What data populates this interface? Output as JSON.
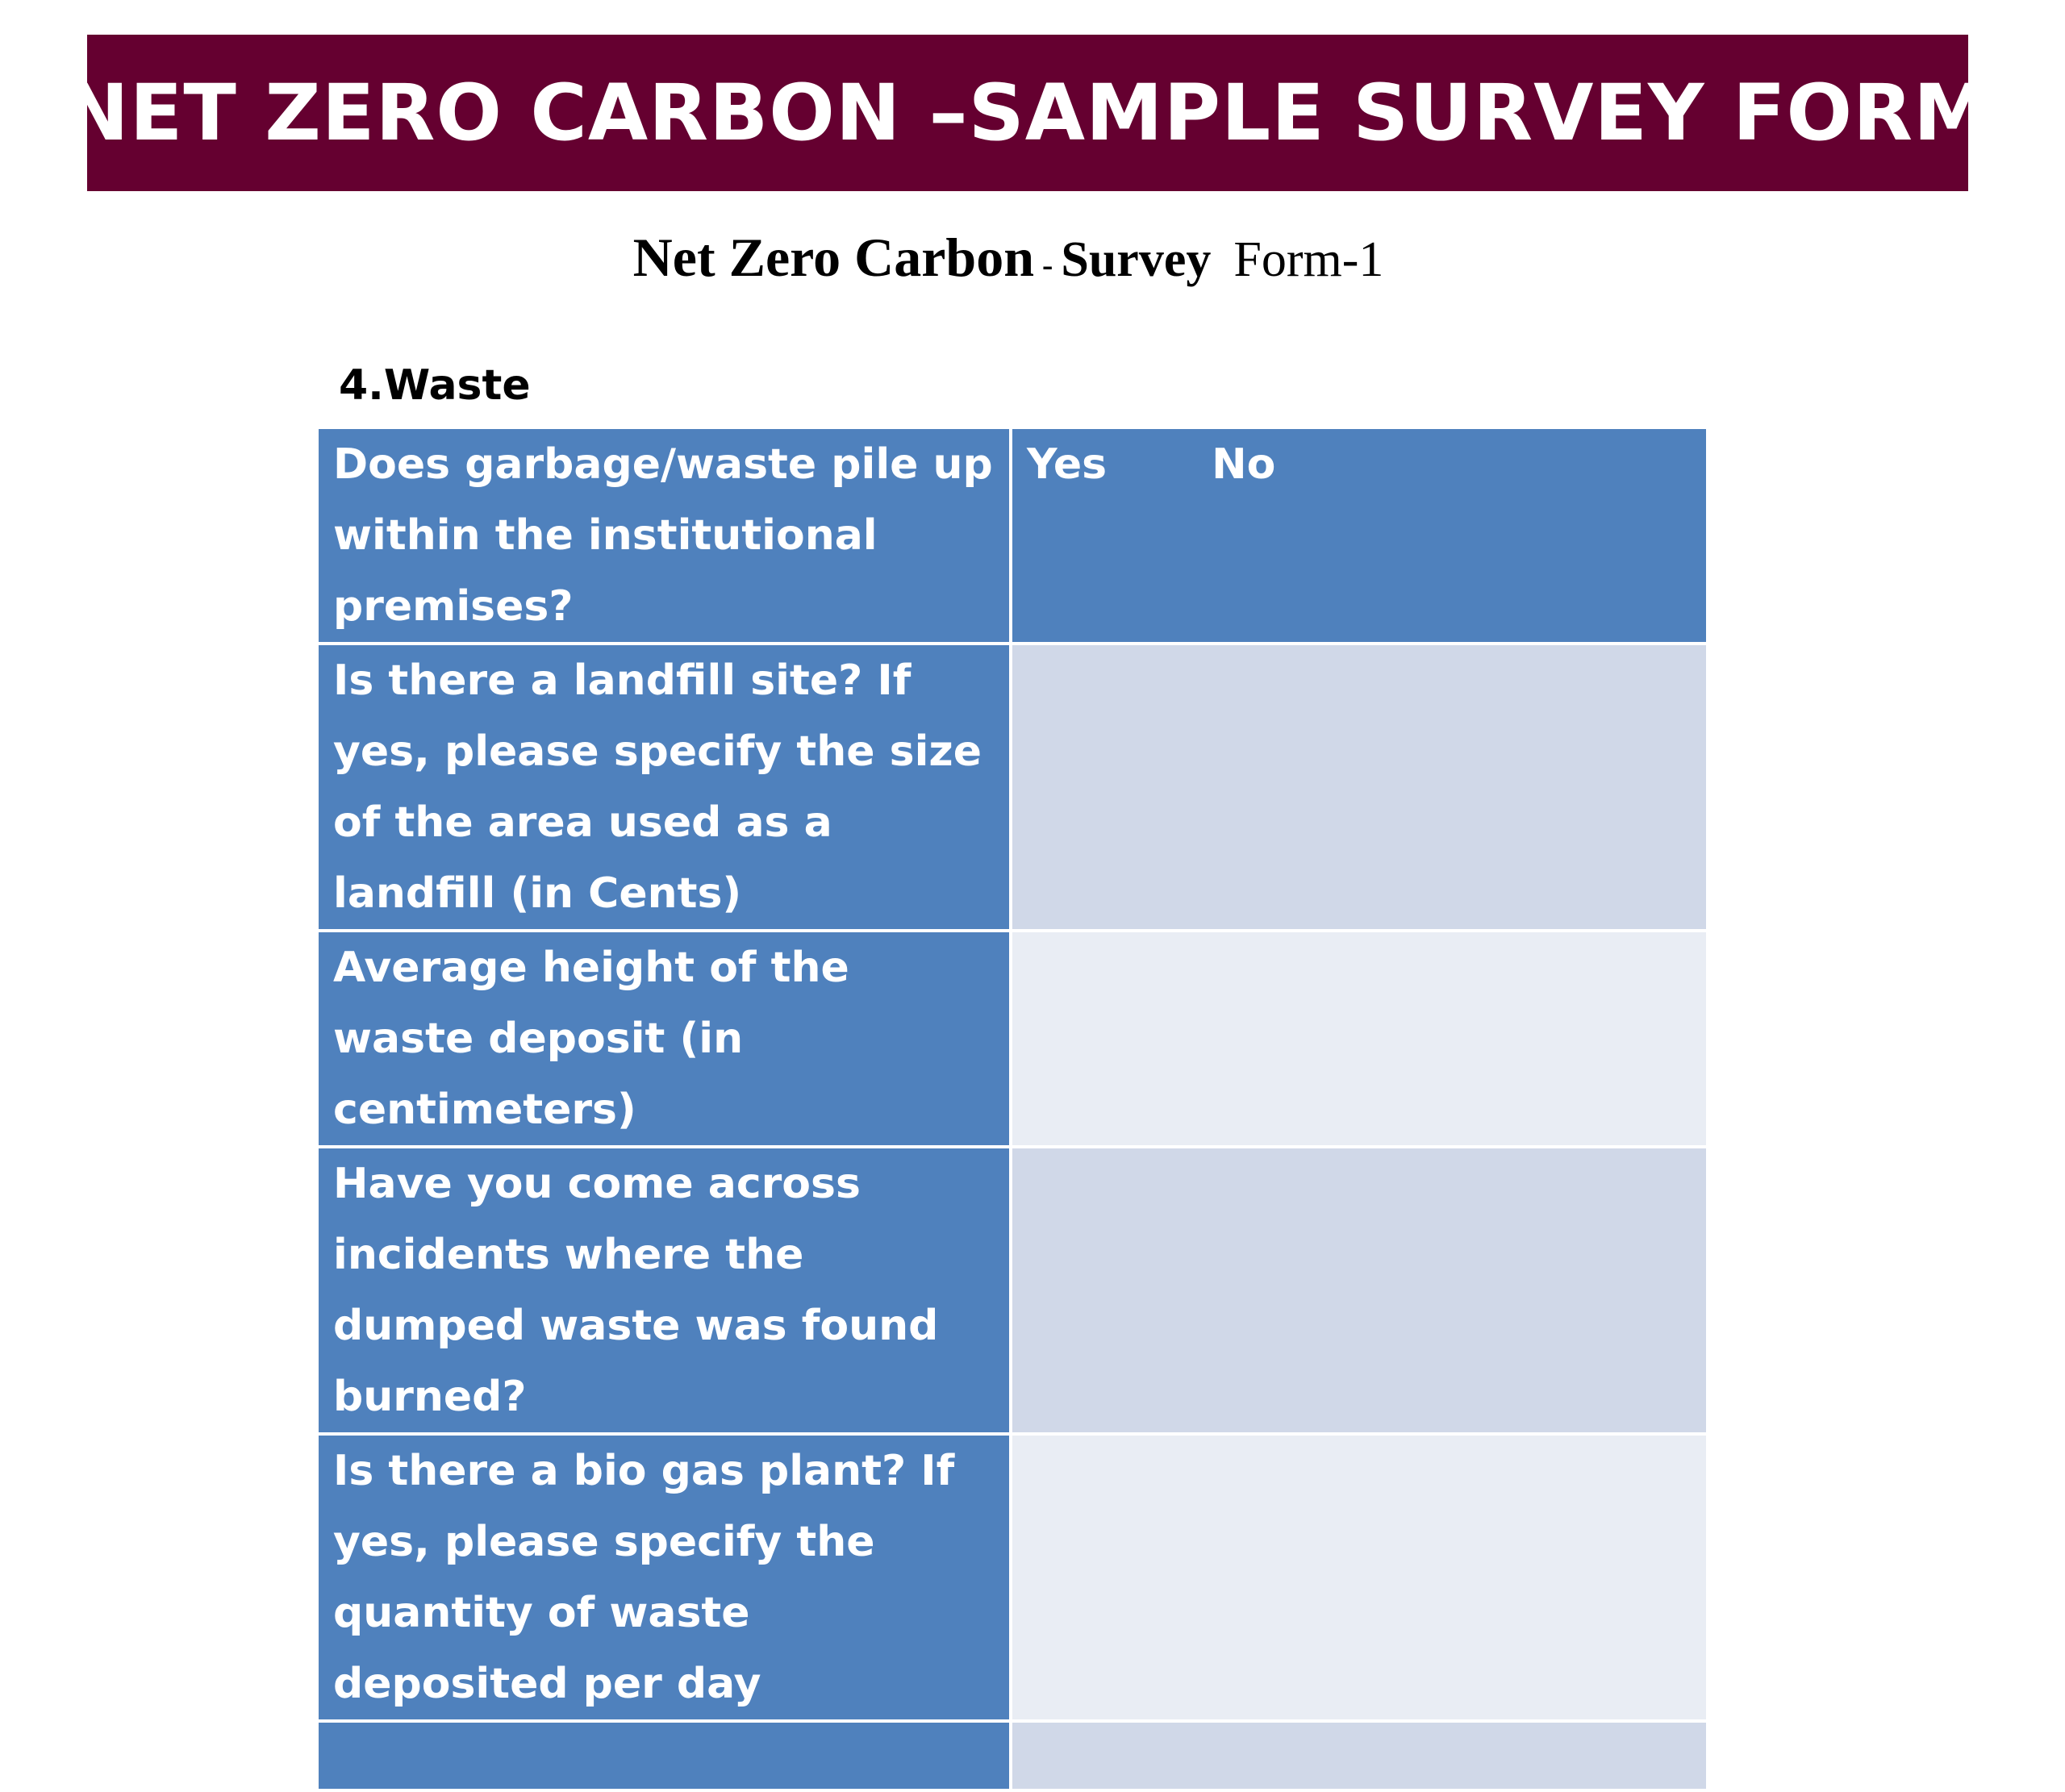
{
  "banner": {
    "title": "NET ZERO CARBON –SAMPLE SURVEY FORM"
  },
  "subtitle": {
    "main": "Net Zero Carbon",
    "separator": "-",
    "survey": "Survey",
    "form": "Form-1"
  },
  "section": {
    "heading": "4.Waste"
  },
  "table": {
    "rows": [
      {
        "question": "Does garbage/waste pile up within the institutional premises?",
        "options": [
          "Yes",
          "No"
        ]
      },
      {
        "question": "Is there a landfill site? If  yes, please specify the size of the area used as a landfill (in Cents)",
        "answer": ""
      },
      {
        "question": "Average height of  the waste deposit  (in centimeters)",
        "answer": ""
      },
      {
        "question": "Have you come across incidents where the dumped waste was found burned?",
        "answer": ""
      },
      {
        "question": "Is there a bio gas plant? If yes, please specify the quantity of waste deposited per day",
        "answer": ""
      },
      {
        "question": "",
        "answer": ""
      }
    ]
  },
  "colors": {
    "banner_bg": "#650030",
    "header_cell": "#4f81bd",
    "answer_dark": "#d0d8e8",
    "answer_light": "#e9edf4"
  }
}
